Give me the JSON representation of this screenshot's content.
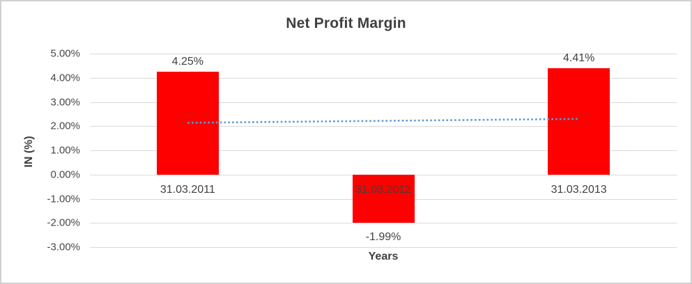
{
  "chart_data": {
    "type": "bar",
    "title": "Net Profit Margin",
    "xlabel": "Years",
    "ylabel": "IN (%)",
    "categories": [
      "31.03.2011",
      "31.03.2012",
      "31.03.2013"
    ],
    "values": [
      4.25,
      -1.99,
      4.41
    ],
    "data_labels": [
      "4.25%",
      "-1.99%",
      "4.41%"
    ],
    "yticks": [
      {
        "value": 5,
        "label": "5.00%"
      },
      {
        "value": 4,
        "label": "4.00%"
      },
      {
        "value": 3,
        "label": "3.00%"
      },
      {
        "value": 2,
        "label": "2.00%"
      },
      {
        "value": 1,
        "label": "1.00%"
      },
      {
        "value": 0,
        "label": "0.00%"
      },
      {
        "value": -1,
        "label": "-1.00%"
      },
      {
        "value": -2,
        "label": "-2.00%"
      },
      {
        "value": -3,
        "label": "-3.00%"
      }
    ],
    "ylim": [
      -3,
      5
    ],
    "grid": true,
    "legend": "none",
    "bar_color": "#ff0000",
    "gridline_color": "#d9d9d9",
    "trendline": {
      "style": "dotted",
      "color": "#5b9bd5",
      "start_value": 2.14,
      "end_value": 2.3
    }
  }
}
